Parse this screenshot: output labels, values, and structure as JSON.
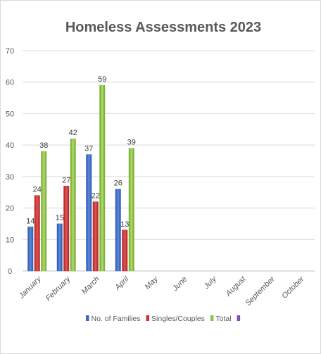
{
  "chart_data": {
    "type": "bar",
    "title": "Homeless Assessments 2023",
    "xlabel": "",
    "ylabel": "",
    "ylim": [
      0,
      70
    ],
    "yticks": [
      0,
      10,
      20,
      30,
      40,
      50,
      60,
      70
    ],
    "grid": true,
    "legend_position": "bottom",
    "categories": [
      "January",
      "February",
      "March",
      "April",
      "May",
      "June",
      "July",
      "August",
      "September",
      "October"
    ],
    "series": [
      {
        "name": "No. of Families",
        "color": "#3a6bc4",
        "values": [
          14,
          15,
          37,
          26,
          null,
          null,
          null,
          null,
          null,
          null
        ]
      },
      {
        "name": "Singles/Couples",
        "color": "#cc3333",
        "values": [
          24,
          27,
          22,
          13,
          null,
          null,
          null,
          null,
          null,
          null
        ]
      },
      {
        "name": "Total",
        "color": "#8bc34a",
        "values": [
          38,
          42,
          59,
          39,
          null,
          null,
          null,
          null,
          null,
          null
        ]
      },
      {
        "name": "",
        "color": "#7b4fb8",
        "values": [
          null,
          null,
          null,
          null,
          null,
          null,
          null,
          null,
          null,
          null
        ]
      }
    ]
  }
}
